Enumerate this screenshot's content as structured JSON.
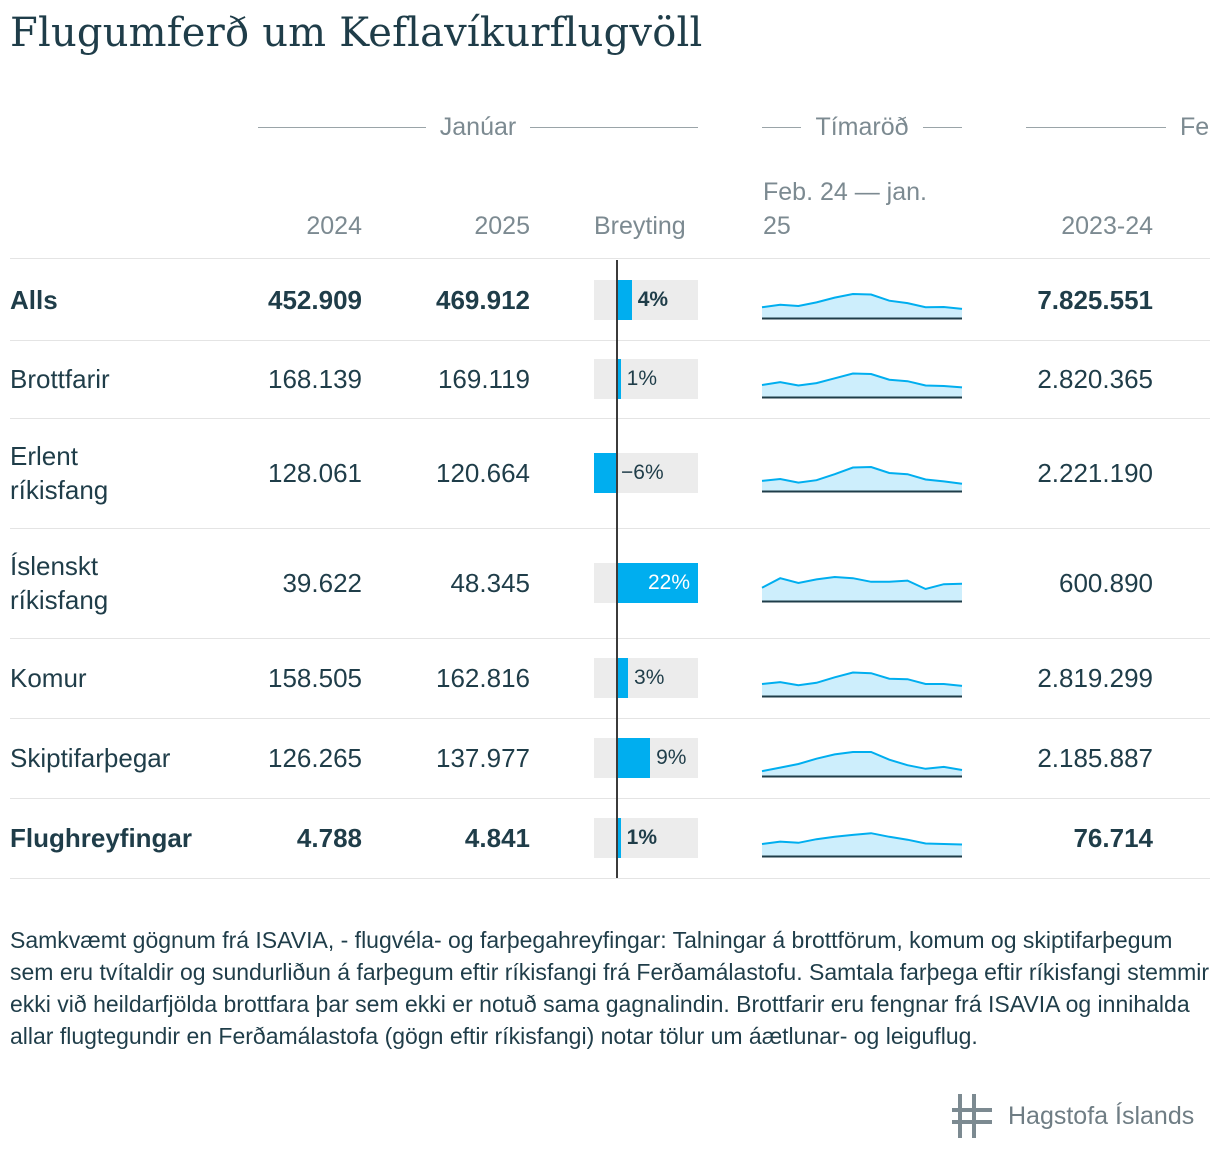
{
  "title": "Flugumferð um Keflavíkurflugvöll",
  "groups": {
    "january": "Janúar",
    "series": "Tímaröð",
    "feb_cut": "Fe"
  },
  "columns": {
    "y2024": "2024",
    "y2025": "2025",
    "change": "Breyting",
    "series_line1": "Feb. 24 — jan.",
    "series_line2": "25",
    "year_total": "2023-24"
  },
  "chart_data": {
    "type": "table",
    "change_scale_max_pct": 22,
    "rows": [
      {
        "label": "Alls",
        "bold": true,
        "y2024": "452.909",
        "y2025": "469.912",
        "change_pct": 4,
        "change_label": "4%",
        "year_total": "7.825.551",
        "trend": [
          0.45,
          0.55,
          0.5,
          0.65,
          0.85,
          1.0,
          0.98,
          0.72,
          0.62,
          0.45,
          0.46,
          0.38
        ]
      },
      {
        "label": "Brottfarir",
        "bold": false,
        "y2024": "168.139",
        "y2025": "169.119",
        "change_pct": 1,
        "change_label": "1%",
        "year_total": "2.820.365",
        "trend": [
          0.5,
          0.62,
          0.48,
          0.58,
          0.78,
          0.98,
          0.96,
          0.72,
          0.66,
          0.48,
          0.46,
          0.4
        ]
      },
      {
        "label": "Erlent ríkisfang",
        "bold": false,
        "y2024": "128.061",
        "y2025": "120.664",
        "change_pct": -6,
        "change_label": "−6%",
        "year_total": "2.221.190",
        "trend": [
          0.42,
          0.5,
          0.35,
          0.45,
          0.7,
          0.98,
          1.0,
          0.75,
          0.7,
          0.48,
          0.4,
          0.3
        ]
      },
      {
        "label": "Íslenskt ríkisfang",
        "bold": false,
        "y2024": "39.622",
        "y2025": "48.345",
        "change_pct": 22,
        "change_label": "22%",
        "year_total": "600.890",
        "trend": [
          0.55,
          0.95,
          0.75,
          0.9,
          1.0,
          0.95,
          0.8,
          0.8,
          0.85,
          0.5,
          0.7,
          0.72
        ]
      },
      {
        "label": "Komur",
        "bold": false,
        "y2024": "158.505",
        "y2025": "162.816",
        "change_pct": 3,
        "change_label": "3%",
        "year_total": "2.819.299",
        "trend": [
          0.5,
          0.58,
          0.45,
          0.55,
          0.78,
          0.98,
          0.95,
          0.72,
          0.7,
          0.5,
          0.5,
          0.42
        ]
      },
      {
        "label": "Skiptifarþegar",
        "bold": false,
        "y2024": "126.265",
        "y2025": "137.977",
        "change_pct": 9,
        "change_label": "9%",
        "year_total": "2.185.887",
        "trend": [
          0.2,
          0.35,
          0.5,
          0.72,
          0.9,
          1.0,
          1.0,
          0.68,
          0.45,
          0.3,
          0.38,
          0.25
        ]
      },
      {
        "label": "Flughreyfingar",
        "bold": true,
        "y2024": "4.788",
        "y2025": "4.841",
        "change_pct": 1,
        "change_label": "1%",
        "year_total": "76.714",
        "trend": [
          0.5,
          0.6,
          0.55,
          0.7,
          0.8,
          0.88,
          0.95,
          0.8,
          0.68,
          0.52,
          0.5,
          0.48
        ]
      }
    ]
  },
  "notes": "Samkvæmt gögnum frá ISAVIA, - flugvéla- og farþegahreyfingar: Talningar á brottförum, komum og skiptifarþegum sem eru tvítaldir og sundurliðun á farþegum eftir ríkisfangi frá Ferðamálastofu. Samtala farþega eftir ríkisfangi stemmir ekki við heildarfjölda brottfara þar sem ekki er notuð sama gagnalindin. Brottfarir eru fengnar frá ISAVIA og innihalda allar flugtegundir en Ferðamálastofa (gögn eftir ríkisfangi) notar tölur um áætlunar- og leiguflug.",
  "logo_text": "Hagstofa Íslands",
  "colors": {
    "accent": "#00aeef",
    "spark_fill": "#cdeefc",
    "text": "#1f3d49",
    "muted": "#7c8a91"
  }
}
